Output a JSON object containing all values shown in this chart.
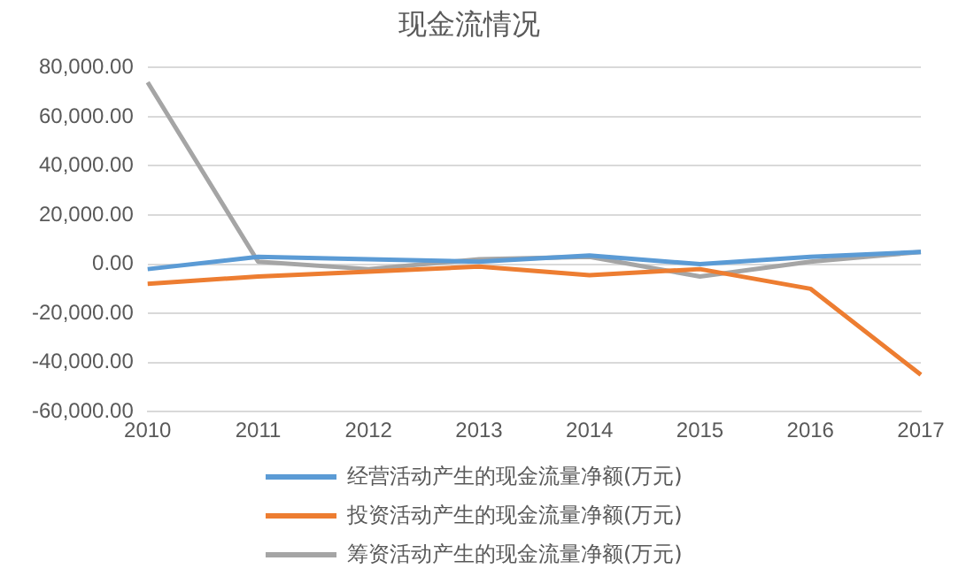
{
  "chart_data": {
    "type": "line",
    "title": "现金流情况",
    "categories": [
      "2010",
      "2011",
      "2012",
      "2013",
      "2014",
      "2015",
      "2016",
      "2017"
    ],
    "series": [
      {
        "name": "经营活动产生的现金流量净额(万元)",
        "color": "#5b9bd5",
        "values": [
          -2000,
          3000,
          2000,
          1000,
          3500,
          0,
          3000,
          5000
        ]
      },
      {
        "name": "投资活动产生的现金流量净额(万元)",
        "color": "#ed7d31",
        "values": [
          -8000,
          -5000,
          -3000,
          -1000,
          -4500,
          -2000,
          -10000,
          -45000
        ]
      },
      {
        "name": "筹资活动产生的现金流量净额(万元)",
        "color": "#a5a5a5",
        "values": [
          74000,
          1000,
          -2000,
          2000,
          3000,
          -5000,
          1000,
          5000
        ]
      }
    ],
    "ylim": [
      -60000,
      80000
    ],
    "yticks": [
      {
        "value": -60000,
        "label": "-60,000.00"
      },
      {
        "value": -40000,
        "label": "-40,000.00"
      },
      {
        "value": -20000,
        "label": "-20,000.00"
      },
      {
        "value": 0,
        "label": "0.00"
      },
      {
        "value": 20000,
        "label": "20,000.00"
      },
      {
        "value": 40000,
        "label": "40,000.00"
      },
      {
        "value": 60000,
        "label": "60,000.00"
      },
      {
        "value": 80000,
        "label": "80,000.00"
      }
    ],
    "grid": "y",
    "legend": "bottom",
    "marker": "none",
    "line_style": "solid"
  }
}
